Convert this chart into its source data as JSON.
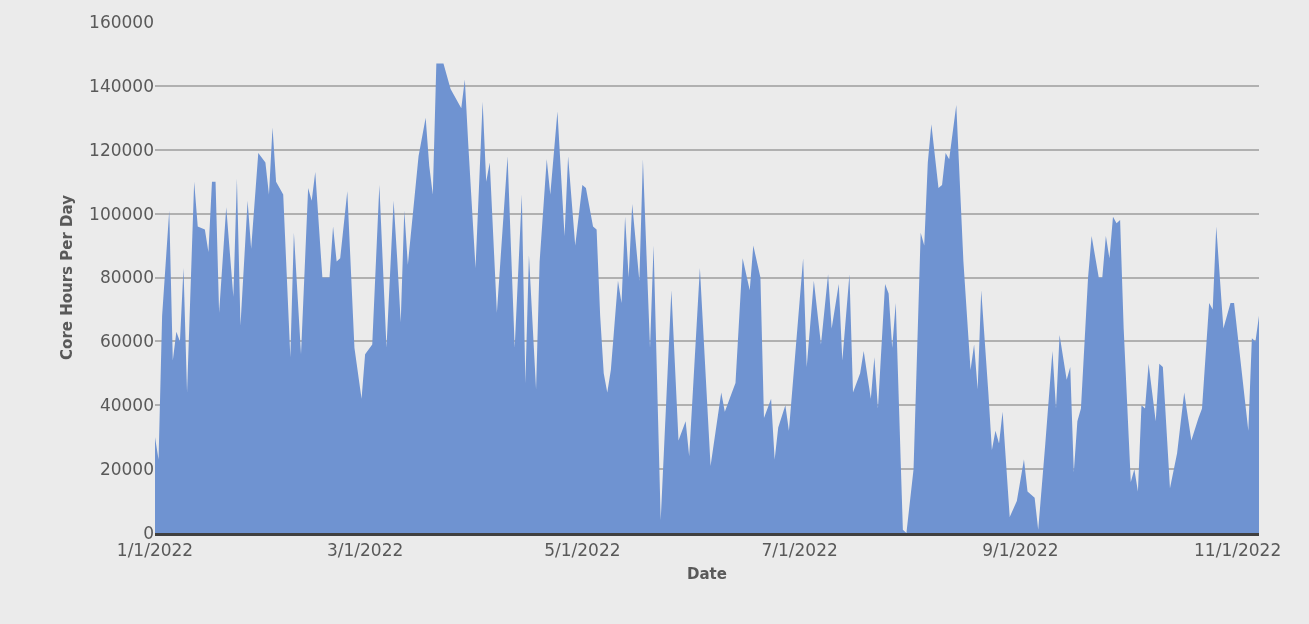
{
  "chart_data": {
    "type": "area",
    "xlabel": "Date",
    "ylabel": "Core Hours Per Day",
    "grid": "y",
    "xlim": [
      "2022-01-01",
      "2022-11-07"
    ],
    "xticks": [
      {
        "value": "2022-01-01",
        "label": "1/1/2022"
      },
      {
        "value": "2022-03-01",
        "label": "3/1/2022"
      },
      {
        "value": "2022-05-01",
        "label": "5/1/2022"
      },
      {
        "value": "2022-07-01",
        "label": "7/1/2022"
      },
      {
        "value": "2022-09-01",
        "label": "9/1/2022"
      },
      {
        "value": "2022-11-01",
        "label": "11/1/2022"
      }
    ],
    "ylim": [
      0,
      160000
    ],
    "yticks": [
      0,
      20000,
      40000,
      60000,
      80000,
      100000,
      120000,
      140000,
      160000
    ],
    "x": [
      "2022-01-01",
      "2022-01-02",
      "2022-01-03",
      "2022-01-05",
      "2022-01-06",
      "2022-01-07",
      "2022-01-08",
      "2022-01-09",
      "2022-01-10",
      "2022-01-12",
      "2022-01-13",
      "2022-01-15",
      "2022-01-16",
      "2022-01-17",
      "2022-01-18",
      "2022-01-19",
      "2022-01-21",
      "2022-01-23",
      "2022-01-24",
      "2022-01-25",
      "2022-01-27",
      "2022-01-28",
      "2022-01-30",
      "2022-02-01",
      "2022-02-02",
      "2022-02-03",
      "2022-02-04",
      "2022-02-06",
      "2022-02-08",
      "2022-02-09",
      "2022-02-11",
      "2022-02-13",
      "2022-02-14",
      "2022-02-15",
      "2022-02-17",
      "2022-02-19",
      "2022-02-20",
      "2022-02-21",
      "2022-02-22",
      "2022-02-24",
      "2022-02-26",
      "2022-02-28",
      "2022-03-01",
      "2022-03-03",
      "2022-03-05",
      "2022-03-07",
      "2022-03-09",
      "2022-03-10",
      "2022-03-11",
      "2022-03-12",
      "2022-03-13",
      "2022-03-16",
      "2022-03-18",
      "2022-03-19",
      "2022-03-20",
      "2022-03-21",
      "2022-03-23",
      "2022-03-25",
      "2022-03-28",
      "2022-03-29",
      "2022-03-30",
      "2022-04-01",
      "2022-04-03",
      "2022-04-04",
      "2022-04-05",
      "2022-04-07",
      "2022-04-10",
      "2022-04-12",
      "2022-04-14",
      "2022-04-15",
      "2022-04-16",
      "2022-04-18",
      "2022-04-19",
      "2022-04-21",
      "2022-04-22",
      "2022-04-24",
      "2022-04-26",
      "2022-04-27",
      "2022-04-29",
      "2022-05-01",
      "2022-05-02",
      "2022-05-04",
      "2022-05-05",
      "2022-05-06",
      "2022-05-07",
      "2022-05-08",
      "2022-05-09",
      "2022-05-11",
      "2022-05-12",
      "2022-05-13",
      "2022-05-14",
      "2022-05-15",
      "2022-05-17",
      "2022-05-18",
      "2022-05-20",
      "2022-05-21",
      "2022-05-23",
      "2022-05-26",
      "2022-05-28",
      "2022-05-30",
      "2022-05-31",
      "2022-06-03",
      "2022-06-06",
      "2022-06-09",
      "2022-06-10",
      "2022-06-12",
      "2022-06-13",
      "2022-06-15",
      "2022-06-17",
      "2022-06-18",
      "2022-06-20",
      "2022-06-21",
      "2022-06-23",
      "2022-06-24",
      "2022-06-25",
      "2022-06-27",
      "2022-06-28",
      "2022-06-30",
      "2022-07-02",
      "2022-07-03",
      "2022-07-05",
      "2022-07-07",
      "2022-07-09",
      "2022-07-10",
      "2022-07-12",
      "2022-07-13",
      "2022-07-15",
      "2022-07-16",
      "2022-07-18",
      "2022-07-19",
      "2022-07-21",
      "2022-07-22",
      "2022-07-23",
      "2022-07-25",
      "2022-07-26",
      "2022-07-27",
      "2022-07-28",
      "2022-07-30",
      "2022-07-31",
      "2022-08-02",
      "2022-08-04",
      "2022-08-05",
      "2022-08-06",
      "2022-08-07",
      "2022-08-09",
      "2022-08-10",
      "2022-08-11",
      "2022-08-12",
      "2022-08-14",
      "2022-08-16",
      "2022-08-18",
      "2022-08-19",
      "2022-08-20",
      "2022-08-21",
      "2022-08-23",
      "2022-08-24",
      "2022-08-25",
      "2022-08-26",
      "2022-08-27",
      "2022-08-29",
      "2022-08-31",
      "2022-09-02",
      "2022-09-03",
      "2022-09-05",
      "2022-09-06",
      "2022-09-08",
      "2022-09-10",
      "2022-09-11",
      "2022-09-12",
      "2022-09-14",
      "2022-09-15",
      "2022-09-16",
      "2022-09-17",
      "2022-09-18",
      "2022-09-20",
      "2022-09-21",
      "2022-09-23",
      "2022-09-24",
      "2022-09-25",
      "2022-09-26",
      "2022-09-27",
      "2022-09-28",
      "2022-09-29",
      "2022-09-30",
      "2022-10-02",
      "2022-10-03",
      "2022-10-04",
      "2022-10-05",
      "2022-10-06",
      "2022-10-07",
      "2022-10-09",
      "2022-10-10",
      "2022-10-11",
      "2022-10-13",
      "2022-10-15",
      "2022-10-17",
      "2022-10-19",
      "2022-10-21",
      "2022-10-22",
      "2022-10-24",
      "2022-10-25",
      "2022-10-26",
      "2022-10-28",
      "2022-10-30",
      "2022-10-31",
      "2022-11-04",
      "2022-11-05",
      "2022-11-06",
      "2022-11-07"
    ],
    "series": [
      {
        "color": "#6f93d1",
        "values": [
          30000,
          23000,
          68000,
          101000,
          54000,
          63000,
          60000,
          83000,
          44000,
          110000,
          96000,
          95000,
          88000,
          110000,
          110000,
          69000,
          102000,
          74000,
          111000,
          65000,
          104000,
          89000,
          119000,
          116000,
          106000,
          127000,
          110000,
          106000,
          55000,
          94000,
          56000,
          108000,
          104000,
          113000,
          80000,
          80000,
          96000,
          85000,
          86000,
          107000,
          58000,
          42000,
          56000,
          59000,
          109000,
          58000,
          104000,
          86000,
          66000,
          101000,
          84000,
          118000,
          130000,
          115000,
          106000,
          147000,
          147000,
          139000,
          133000,
          142000,
          121000,
          83000,
          135000,
          110000,
          116000,
          69000,
          118000,
          58000,
          106000,
          47000,
          87000,
          45000,
          85000,
          117000,
          106000,
          132000,
          93000,
          118000,
          90000,
          109000,
          108000,
          96000,
          95000,
          68000,
          50000,
          44000,
          51000,
          79000,
          72000,
          99000,
          80000,
          103000,
          79000,
          117000,
          58000,
          90000,
          4000,
          76000,
          29000,
          35000,
          24000,
          83000,
          21000,
          44000,
          38000,
          44000,
          47000,
          86000,
          76000,
          90000,
          80000,
          36000,
          42000,
          23000,
          33000,
          40000,
          32000,
          59000,
          86000,
          52000,
          79000,
          59000,
          81000,
          64000,
          78000,
          54000,
          81000,
          44000,
          50000,
          57000,
          42000,
          55000,
          39000,
          78000,
          75000,
          58000,
          72000,
          1000,
          0,
          20000,
          94000,
          90000,
          116000,
          128000,
          108000,
          109000,
          119000,
          117000,
          134000,
          85000,
          51000,
          59000,
          45000,
          76000,
          44000,
          26000,
          32000,
          28000,
          38000,
          5000,
          10000,
          23000,
          13000,
          11000,
          1000,
          28000,
          57000,
          39000,
          62000,
          48000,
          52000,
          19000,
          35000,
          39000,
          80000,
          93000,
          80000,
          80000,
          93000,
          86000,
          99000,
          97000,
          98000,
          64000,
          16000,
          20000,
          13000,
          40000,
          39000,
          53000,
          35000,
          53000,
          52000,
          14000,
          25000,
          44000,
          29000,
          36000,
          39000,
          72000,
          70000,
          96000,
          64000,
          72000,
          72000,
          32000,
          61000,
          60000,
          68000
        ]
      }
    ]
  }
}
